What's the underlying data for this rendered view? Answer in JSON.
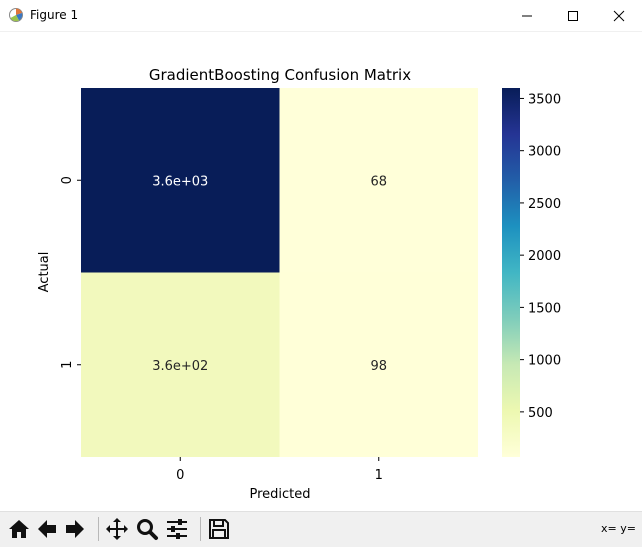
{
  "window": {
    "title": "Figure 1",
    "icons": [
      "app-icon",
      "minimize-icon",
      "maximize-icon",
      "close-icon"
    ]
  },
  "toolbar": {
    "buttons": [
      {
        "name": "home",
        "icon": "home-icon"
      },
      {
        "name": "back",
        "icon": "back-arrow-icon"
      },
      {
        "name": "forward",
        "icon": "forward-arrow-icon"
      },
      {
        "name": "pan",
        "icon": "pan-icon"
      },
      {
        "name": "zoom",
        "icon": "zoom-icon"
      },
      {
        "name": "configure",
        "icon": "sliders-icon"
      },
      {
        "name": "save",
        "icon": "save-icon"
      }
    ],
    "coords_label": "x= y="
  },
  "chart_data": {
    "type": "heatmap",
    "title": "GradientBoosting Confusion Matrix",
    "xlabel": "Predicted",
    "ylabel": "Actual",
    "x_categories": [
      "0",
      "1"
    ],
    "y_categories": [
      "0",
      "1"
    ],
    "values": [
      [
        3600,
        68
      ],
      [
        360,
        98
      ]
    ],
    "annotations": [
      [
        "3.6e+03",
        "68"
      ],
      [
        "3.6e+02",
        "98"
      ]
    ],
    "colormap": "YlGnBu",
    "colorbar": {
      "ticks": [
        500,
        1000,
        1500,
        2000,
        2500,
        3000,
        3500
      ],
      "range": [
        68,
        3600
      ]
    },
    "cell_colors": [
      [
        "#081d58",
        "#ffffd9"
      ],
      [
        "#f2f9bd",
        "#ffffd8"
      ]
    ],
    "annotation_colors": [
      [
        "#ffffff",
        "#262626"
      ],
      [
        "#262626",
        "#262626"
      ]
    ]
  }
}
